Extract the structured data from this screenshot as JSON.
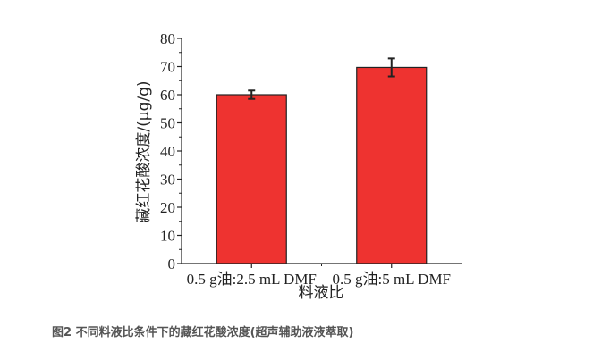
{
  "chart_data": {
    "type": "bar",
    "categories": [
      "0.5 g油:2.5 mL DMF",
      "0.5 g油:5 mL DMF"
    ],
    "values": [
      60,
      69.7
    ],
    "errors": [
      1.5,
      3.2
    ],
    "xlabel": "料液比",
    "ylabel": "藏红花酸浓度/(μg/g)",
    "ylim": [
      0,
      80
    ],
    "yticks": [
      0,
      10,
      20,
      30,
      40,
      50,
      60,
      70,
      80
    ],
    "bar_color": "#ee3330",
    "grid": false
  },
  "caption": "图2 不同料液比条件下的藏红花酸浓度(超声辅助液液萃取)"
}
